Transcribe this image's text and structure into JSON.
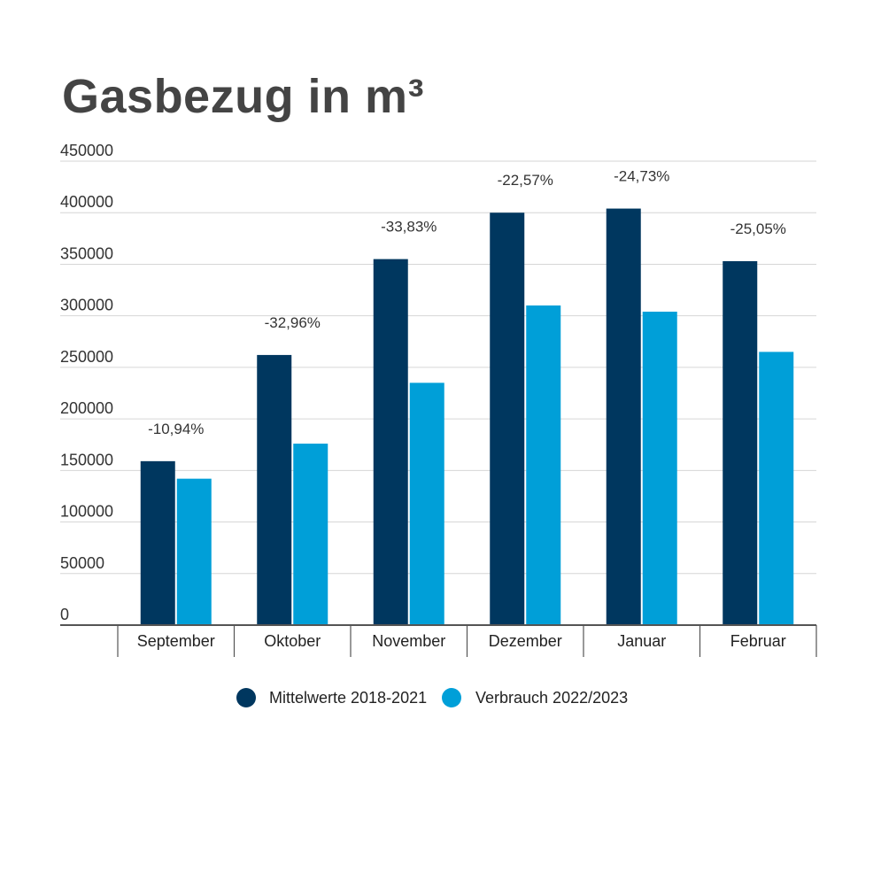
{
  "chart_data": {
    "type": "bar",
    "title": "Gasbezug in m³",
    "categories": [
      "September",
      "Oktober",
      "November",
      "Dezember",
      "Januar",
      "Februar"
    ],
    "series": [
      {
        "name": "Mittelwerte 2018-2021",
        "values": [
          159000,
          262000,
          355000,
          400000,
          404000,
          353000
        ],
        "color": "#00375f"
      },
      {
        "name": "Verbrauch 2022/2023",
        "values": [
          142000,
          176000,
          235000,
          310000,
          304000,
          265000
        ],
        "color": "#009fd8"
      }
    ],
    "annotations": [
      "-10,94%",
      "-32,96%",
      "-33,83%",
      "-22,57%",
      "-24,73%",
      "-25,05%"
    ],
    "ylim": [
      0,
      450000
    ],
    "yticks": [
      "0",
      "50000",
      "100000",
      "150000",
      "200000",
      "250000",
      "300000",
      "350000",
      "400000",
      "450000"
    ],
    "xlabel": "",
    "ylabel": "",
    "grid": true,
    "legend": "bottom"
  }
}
